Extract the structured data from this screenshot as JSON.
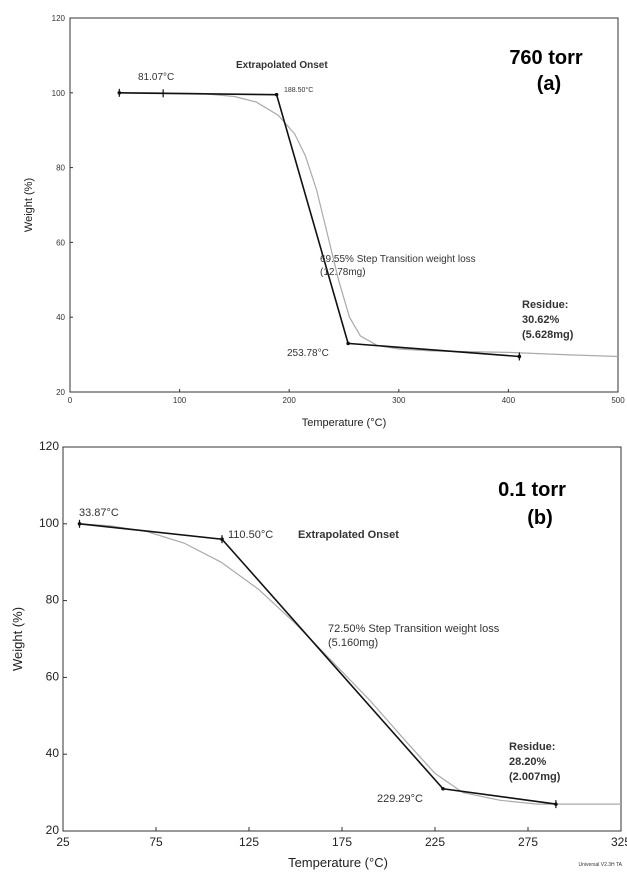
{
  "chart_data": [
    {
      "type": "line",
      "xlabel": "Temperature (°C)",
      "ylabel": "Weight (%)",
      "xlim": [
        0,
        500
      ],
      "ylim": [
        20,
        120
      ],
      "x_ticks": [
        "0",
        "100",
        "200",
        "300",
        "400",
        "500"
      ],
      "y_ticks": [
        "20",
        "40",
        "60",
        "80",
        "100",
        "120"
      ],
      "grid": false,
      "series": [
        {
          "role": "measured",
          "x": [
            45,
            80,
            120,
            150,
            170,
            190,
            205,
            215,
            225,
            235,
            245,
            255,
            265,
            280,
            300,
            330,
            360,
            400,
            450,
            500
          ],
          "y": [
            100,
            100,
            99.8,
            99,
            97.5,
            94,
            89,
            83,
            74,
            62,
            50,
            40,
            35,
            32.5,
            31.5,
            31,
            30.8,
            30.6,
            30,
            29.5
          ]
        },
        {
          "role": "tangent",
          "x": [
            45,
            188.5,
            253.78,
            410
          ],
          "y": [
            100,
            99.5,
            33,
            29.5
          ]
        }
      ],
      "tick_marks_x": [
        45,
        85,
        410
      ],
      "annotations": {
        "header": "Extrapolated Onset",
        "onset_temp": "81.07°C",
        "onset_point": "188.50°C",
        "step_line1": "69.55% Step Transition weight loss",
        "step_line2": "(12.78mg)",
        "end_temp": "253.78°C",
        "residue_title": "Residue:",
        "residue_pct": "30.62%",
        "residue_mass": "(5.628mg)",
        "pressure": "760 torr",
        "panel": "(a)"
      }
    },
    {
      "type": "line",
      "xlabel": "Temperature (°C)",
      "ylabel": "Weight (%)",
      "xlim": [
        25,
        325
      ],
      "ylim": [
        20,
        120
      ],
      "x_ticks": [
        "25",
        "75",
        "125",
        "175",
        "225",
        "275",
        "325"
      ],
      "y_ticks": [
        "20",
        "40",
        "60",
        "80",
        "100",
        "120"
      ],
      "grid": false,
      "series": [
        {
          "role": "measured",
          "x": [
            33.87,
            50,
            70,
            90,
            110,
            130,
            150,
            170,
            190,
            210,
            225,
            240,
            260,
            280,
            300,
            325
          ],
          "y": [
            100,
            99.5,
            98,
            95,
            90,
            83,
            74,
            64,
            54,
            43,
            35,
            30,
            28,
            27,
            27,
            27
          ]
        },
        {
          "role": "tangent",
          "x": [
            33.87,
            110.5,
            229.29,
            290
          ],
          "y": [
            100,
            96,
            31,
            27
          ]
        }
      ],
      "tick_marks_x": [
        33.87,
        110.5,
        290
      ],
      "annotations": {
        "onset_temp": "33.87°C",
        "onset_point": "110.50°C",
        "header": "Extrapolated Onset",
        "step_line1": "72.50% Step Transition weight loss",
        "step_line2": "(5.160mg)",
        "end_temp": "229.29°C",
        "residue_title": "Residue:",
        "residue_pct": "28.20%",
        "residue_mass": "(2.007mg)",
        "pressure": "0.1 torr",
        "panel": "(b)",
        "footer": "Universal V2.3H TA"
      }
    }
  ]
}
